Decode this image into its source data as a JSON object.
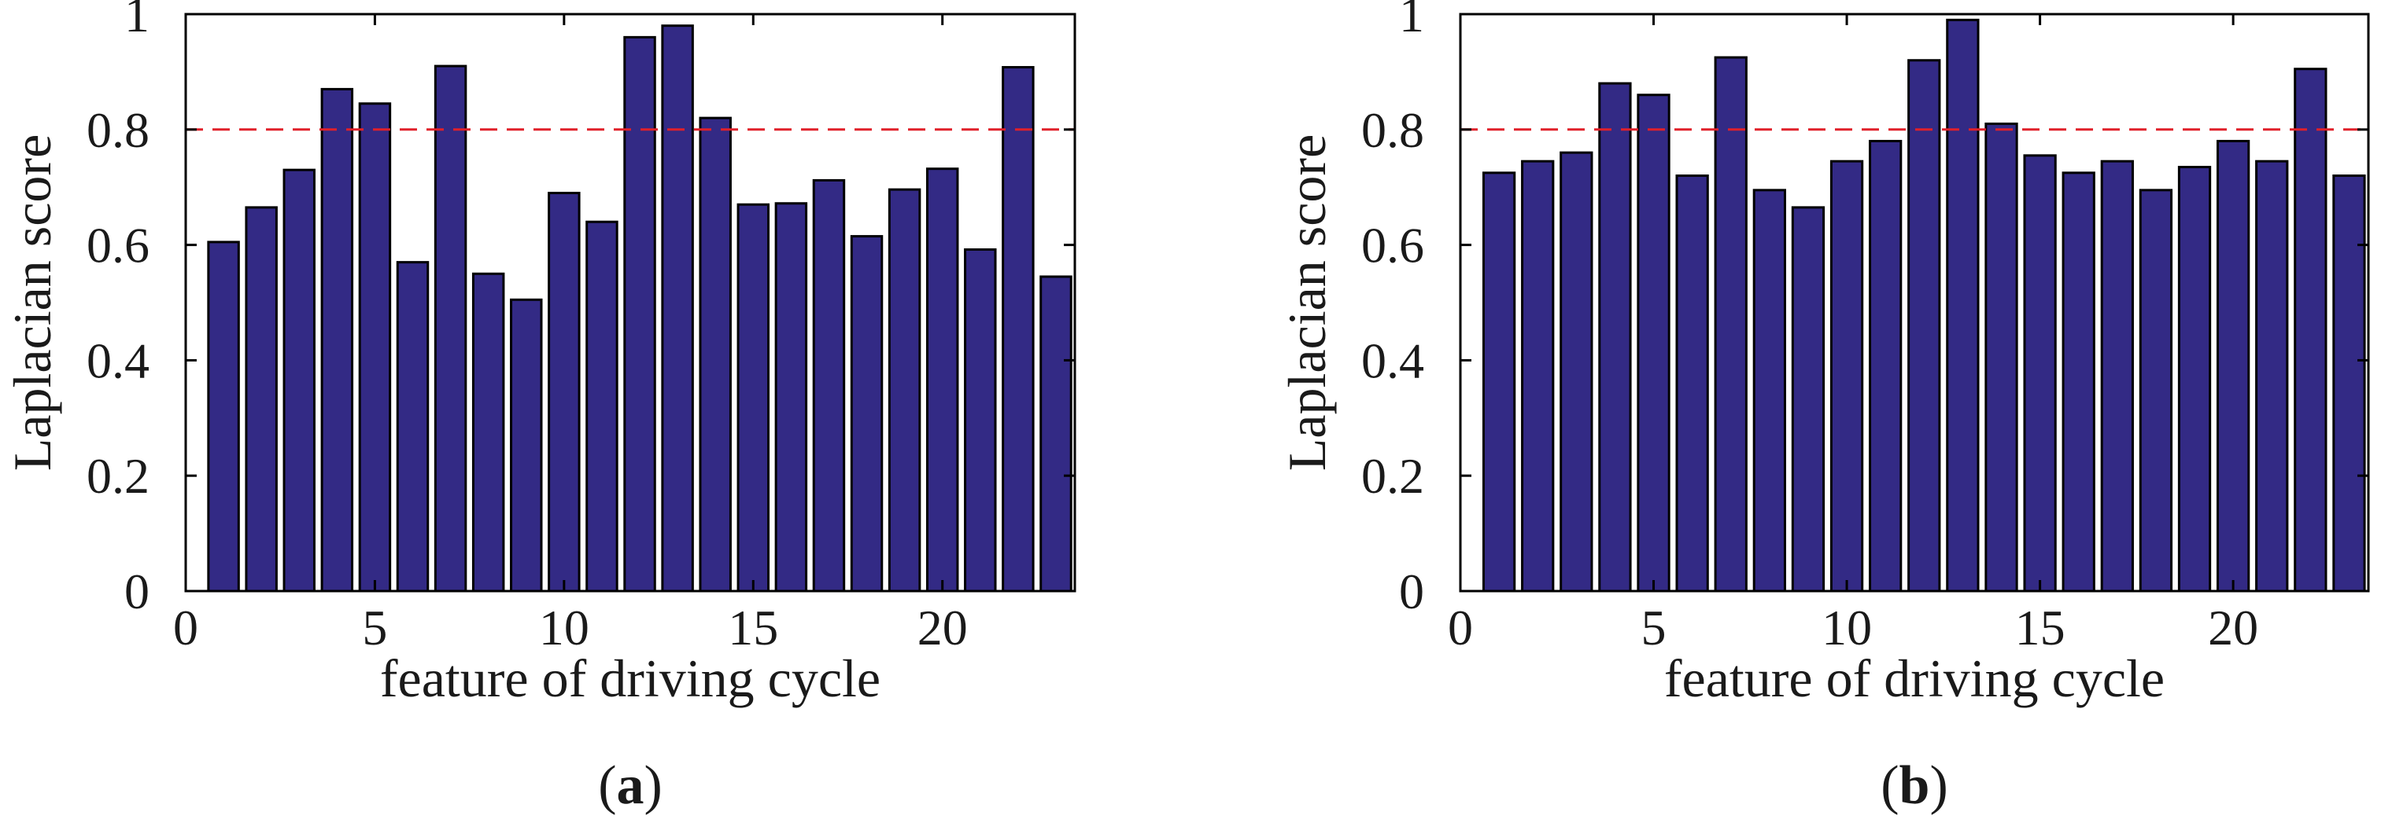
{
  "colors": {
    "bar_fill": "#332a85",
    "bar_edge": "#000000",
    "threshold": "#e0202a",
    "axis": "#000000",
    "text": "#1a1a1a"
  },
  "chart_data": [
    {
      "panel": "a",
      "type": "bar",
      "caption": "a",
      "xlabel": "feature of driving cycle",
      "ylabel": "Laplacian score",
      "xlim": [
        0,
        23.5
      ],
      "ylim": [
        0,
        1.0
      ],
      "xticks": [
        0,
        5,
        10,
        15,
        20
      ],
      "xtick_labels": [
        "0",
        "5",
        "10",
        "15",
        "20"
      ],
      "yticks": [
        0,
        0.2,
        0.4,
        0.6,
        0.8,
        1.0
      ],
      "ytick_labels": [
        "0",
        "0.2",
        "0.4",
        "0.6",
        "0.8",
        "1"
      ],
      "threshold": 0.8,
      "x": [
        1,
        2,
        3,
        4,
        5,
        6,
        7,
        8,
        9,
        10,
        11,
        12,
        13,
        14,
        15,
        16,
        17,
        18,
        19,
        20,
        21,
        22,
        23
      ],
      "values": [
        0.605,
        0.665,
        0.73,
        0.87,
        0.845,
        0.57,
        0.91,
        0.55,
        0.505,
        0.69,
        0.64,
        0.96,
        0.98,
        0.82,
        0.67,
        0.672,
        0.712,
        0.615,
        0.696,
        0.732,
        0.592,
        0.908,
        0.545
      ]
    },
    {
      "panel": "b",
      "type": "bar",
      "caption": "b",
      "xlabel": "feature of driving cycle",
      "ylabel": "Laplacian score",
      "xlim": [
        0,
        23.5
      ],
      "ylim": [
        0,
        1.0
      ],
      "xticks": [
        0,
        5,
        10,
        15,
        20
      ],
      "xtick_labels": [
        "0",
        "5",
        "10",
        "15",
        "20"
      ],
      "yticks": [
        0,
        0.2,
        0.4,
        0.6,
        0.8,
        1.0
      ],
      "ytick_labels": [
        "0",
        "0.2",
        "0.4",
        "0.6",
        "0.8",
        "1"
      ],
      "threshold": 0.8,
      "x": [
        1,
        2,
        3,
        4,
        5,
        6,
        7,
        8,
        9,
        10,
        11,
        12,
        13,
        14,
        15,
        16,
        17,
        18,
        19,
        20,
        21,
        22,
        23
      ],
      "values": [
        0.725,
        0.745,
        0.76,
        0.88,
        0.86,
        0.72,
        0.925,
        0.695,
        0.665,
        0.745,
        0.78,
        0.92,
        0.99,
        0.81,
        0.755,
        0.725,
        0.745,
        0.695,
        0.735,
        0.78,
        0.745,
        0.905,
        0.72
      ]
    }
  ]
}
